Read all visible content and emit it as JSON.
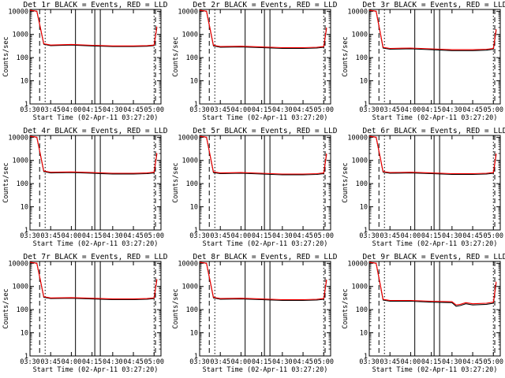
{
  "chart_data": [
    {
      "type": "line",
      "title": "Det 1r BLACK = Events, RED = LLD",
      "xlabel": "Start Time (02-Apr-11 03:27:20)",
      "ylabel": "Counts/sec",
      "x_tick_labels": [
        "03:30",
        "03:45",
        "04:00",
        "04:15",
        "04:30",
        "04:45",
        "05:00"
      ],
      "y_tick_labels": [
        "1",
        "10",
        "100",
        "1000",
        "10000"
      ],
      "y_scale": "log",
      "ylim": [
        1,
        12000
      ],
      "xlim": [
        "03:30",
        "05:05"
      ],
      "legend": "title",
      "colors": {
        "events": "#000000",
        "lld": "#ff0000"
      },
      "x": [
        "03:30",
        "03:35",
        "03:40",
        "03:45",
        "04:00",
        "04:15",
        "04:30",
        "04:45",
        "04:55",
        "05:00",
        "05:02"
      ],
      "series": [
        {
          "name": "BLACK = Events",
          "values": [
            11000,
            10000,
            380,
            330,
            350,
            320,
            300,
            300,
            310,
            330,
            2000
          ]
        },
        {
          "name": "RED = LLD",
          "values": [
            11000,
            10000,
            400,
            350,
            370,
            340,
            320,
            320,
            330,
            350,
            2200
          ]
        }
      ],
      "vlines_dashed": [
        "03:37",
        "05:01"
      ],
      "vlines_dotted": [
        "03:41",
        "05:00"
      ],
      "vlines_solid": [
        "04:03",
        "04:17",
        "04:21"
      ]
    },
    {
      "type": "line",
      "title": "Det 2r BLACK = Events, RED = LLD",
      "xlabel": "Start Time (02-Apr-11 03:27:20)",
      "ylabel": "Counts/sec",
      "x_tick_labels": [
        "03:30",
        "03:45",
        "04:00",
        "04:15",
        "04:30",
        "04:45",
        "05:00"
      ],
      "y_tick_labels": [
        "1",
        "10",
        "100",
        "1000",
        "10000"
      ],
      "y_scale": "log",
      "ylim": [
        1,
        12000
      ],
      "xlim": [
        "03:30",
        "05:05"
      ],
      "legend": "title",
      "colors": {
        "events": "#000000",
        "lld": "#ff0000"
      },
      "x": [
        "03:30",
        "03:35",
        "03:40",
        "03:45",
        "04:00",
        "04:15",
        "04:30",
        "04:45",
        "04:55",
        "05:00",
        "05:02"
      ],
      "series": [
        {
          "name": "BLACK = Events",
          "values": [
            11000,
            10000,
            320,
            280,
            290,
            270,
            250,
            250,
            260,
            280,
            1800
          ]
        },
        {
          "name": "RED = LLD",
          "values": [
            11000,
            10000,
            340,
            300,
            310,
            290,
            270,
            270,
            280,
            300,
            2000
          ]
        }
      ],
      "vlines_dashed": [
        "03:37",
        "05:01"
      ],
      "vlines_dotted": [
        "03:41",
        "05:00"
      ],
      "vlines_solid": [
        "04:03",
        "04:17",
        "04:21"
      ]
    },
    {
      "type": "line",
      "title": "Det 3r BLACK = Events, RED = LLD",
      "xlabel": "Start Time (02-Apr-11 03:27:20)",
      "ylabel": "Counts/sec",
      "x_tick_labels": [
        "03:30",
        "03:45",
        "04:00",
        "04:15",
        "04:30",
        "04:45",
        "05:00"
      ],
      "y_tick_labels": [
        "1",
        "10",
        "100",
        "1000",
        "10000"
      ],
      "y_scale": "log",
      "ylim": [
        1,
        12000
      ],
      "xlim": [
        "03:30",
        "05:05"
      ],
      "legend": "title",
      "colors": {
        "events": "#000000",
        "lld": "#ff0000"
      },
      "x": [
        "03:30",
        "03:35",
        "03:40",
        "03:45",
        "04:00",
        "04:15",
        "04:30",
        "04:45",
        "04:55",
        "05:00",
        "05:02"
      ],
      "series": [
        {
          "name": "BLACK = Events",
          "values": [
            11000,
            10000,
            260,
            230,
            240,
            220,
            200,
            200,
            210,
            230,
            1500
          ]
        },
        {
          "name": "RED = LLD",
          "values": [
            11000,
            10000,
            280,
            250,
            260,
            240,
            220,
            220,
            230,
            250,
            1700
          ]
        }
      ],
      "vlines_dashed": [
        "03:37",
        "05:01"
      ],
      "vlines_dotted": [
        "03:41",
        "05:00"
      ],
      "vlines_solid": [
        "04:03",
        "04:17",
        "04:21"
      ]
    },
    {
      "type": "line",
      "title": "Det 4r BLACK = Events, RED = LLD",
      "xlabel": "Start Time (02-Apr-11 03:27:20)",
      "ylabel": "Counts/sec",
      "x_tick_labels": [
        "03:30",
        "03:45",
        "04:00",
        "04:15",
        "04:30",
        "04:45",
        "05:00"
      ],
      "y_tick_labels": [
        "1",
        "10",
        "100",
        "1000",
        "10000"
      ],
      "y_scale": "log",
      "ylim": [
        1,
        12000
      ],
      "xlim": [
        "03:30",
        "05:05"
      ],
      "legend": "title",
      "colors": {
        "events": "#000000",
        "lld": "#ff0000"
      },
      "x": [
        "03:30",
        "03:35",
        "03:40",
        "03:45",
        "04:00",
        "04:15",
        "04:30",
        "04:45",
        "04:55",
        "05:00",
        "05:02"
      ],
      "series": [
        {
          "name": "BLACK = Events",
          "values": [
            11000,
            10000,
            330,
            290,
            300,
            280,
            260,
            260,
            270,
            290,
            1900
          ]
        },
        {
          "name": "RED = LLD",
          "values": [
            11000,
            10000,
            350,
            310,
            320,
            300,
            280,
            280,
            290,
            310,
            2100
          ]
        }
      ],
      "vlines_dashed": [
        "03:37",
        "05:01"
      ],
      "vlines_dotted": [
        "03:41",
        "05:00"
      ],
      "vlines_solid": [
        "04:03",
        "04:17",
        "04:21"
      ]
    },
    {
      "type": "line",
      "title": "Det 5r BLACK = Events, RED = LLD",
      "xlabel": "Start Time (02-Apr-11 03:27:20)",
      "ylabel": "Counts/sec",
      "x_tick_labels": [
        "03:30",
        "03:45",
        "04:00",
        "04:15",
        "04:30",
        "04:45",
        "05:00"
      ],
      "y_tick_labels": [
        "1",
        "10",
        "100",
        "1000",
        "10000"
      ],
      "y_scale": "log",
      "ylim": [
        1,
        12000
      ],
      "xlim": [
        "03:30",
        "05:05"
      ],
      "legend": "title",
      "colors": {
        "events": "#000000",
        "lld": "#ff0000"
      },
      "x": [
        "03:30",
        "03:35",
        "03:40",
        "03:45",
        "04:00",
        "04:15",
        "04:30",
        "04:45",
        "04:55",
        "05:00",
        "05:02"
      ],
      "series": [
        {
          "name": "BLACK = Events",
          "values": [
            11000,
            10000,
            300,
            270,
            280,
            260,
            240,
            240,
            250,
            270,
            1800
          ]
        },
        {
          "name": "RED = LLD",
          "values": [
            11000,
            10000,
            320,
            290,
            300,
            280,
            260,
            260,
            270,
            290,
            2000
          ]
        }
      ],
      "vlines_dashed": [
        "03:37",
        "05:01"
      ],
      "vlines_dotted": [
        "03:41",
        "05:00"
      ],
      "vlines_solid": [
        "04:03",
        "04:17",
        "04:21"
      ]
    },
    {
      "type": "line",
      "title": "Det 6r BLACK = Events, RED = LLD",
      "xlabel": "Start Time (02-Apr-11 03:27:20)",
      "ylabel": "Counts/sec",
      "x_tick_labels": [
        "03:30",
        "03:45",
        "04:00",
        "04:15",
        "04:30",
        "04:45",
        "05:00"
      ],
      "y_tick_labels": [
        "1",
        "10",
        "100",
        "1000",
        "10000"
      ],
      "y_scale": "log",
      "ylim": [
        1,
        12000
      ],
      "xlim": [
        "03:30",
        "05:05"
      ],
      "legend": "title",
      "colors": {
        "events": "#000000",
        "lld": "#ff0000"
      },
      "x": [
        "03:30",
        "03:35",
        "03:40",
        "03:45",
        "04:00",
        "04:15",
        "04:30",
        "04:45",
        "04:55",
        "05:00",
        "05:02"
      ],
      "series": [
        {
          "name": "BLACK = Events",
          "values": [
            11000,
            10000,
            310,
            280,
            290,
            270,
            250,
            250,
            260,
            280,
            1800
          ]
        },
        {
          "name": "RED = LLD",
          "values": [
            11000,
            10000,
            330,
            300,
            310,
            290,
            270,
            270,
            280,
            300,
            2000
          ]
        }
      ],
      "vlines_dashed": [
        "03:37",
        "05:01"
      ],
      "vlines_dotted": [
        "03:41",
        "05:00"
      ],
      "vlines_solid": [
        "04:03",
        "04:17",
        "04:21"
      ]
    },
    {
      "type": "line",
      "title": "Det 7r BLACK = Events, RED = LLD",
      "xlabel": "Start Time (02-Apr-11 03:27:20)",
      "ylabel": "Counts/sec",
      "x_tick_labels": [
        "03:30",
        "03:45",
        "04:00",
        "04:15",
        "04:30",
        "04:45",
        "05:00"
      ],
      "y_tick_labels": [
        "1",
        "10",
        "100",
        "1000",
        "10000"
      ],
      "y_scale": "log",
      "ylim": [
        1,
        12000
      ],
      "xlim": [
        "03:30",
        "05:05"
      ],
      "legend": "title",
      "colors": {
        "events": "#000000",
        "lld": "#ff0000"
      },
      "x": [
        "03:30",
        "03:35",
        "03:40",
        "03:45",
        "04:00",
        "04:15",
        "04:30",
        "04:45",
        "04:55",
        "05:00",
        "05:02"
      ],
      "series": [
        {
          "name": "BLACK = Events",
          "values": [
            11000,
            10000,
            340,
            300,
            310,
            290,
            270,
            270,
            280,
            300,
            1900
          ]
        },
        {
          "name": "RED = LLD",
          "values": [
            11000,
            10000,
            360,
            320,
            330,
            310,
            290,
            290,
            300,
            320,
            2100
          ]
        }
      ],
      "vlines_dashed": [
        "03:37",
        "05:01"
      ],
      "vlines_dotted": [
        "03:41",
        "05:00"
      ],
      "vlines_solid": [
        "04:03",
        "04:17",
        "04:21"
      ]
    },
    {
      "type": "line",
      "title": "Det 8r BLACK = Events, RED = LLD",
      "xlabel": "Start Time (02-Apr-11 03:27:20)",
      "ylabel": "Counts/sec",
      "x_tick_labels": [
        "03:30",
        "03:45",
        "04:00",
        "04:15",
        "04:30",
        "04:45",
        "05:00"
      ],
      "y_tick_labels": [
        "1",
        "10",
        "100",
        "1000",
        "10000"
      ],
      "y_scale": "log",
      "ylim": [
        1,
        12000
      ],
      "xlim": [
        "03:30",
        "05:05"
      ],
      "legend": "title",
      "colors": {
        "events": "#000000",
        "lld": "#ff0000"
      },
      "x": [
        "03:30",
        "03:35",
        "03:40",
        "03:45",
        "04:00",
        "04:15",
        "04:30",
        "04:45",
        "04:55",
        "05:00",
        "05:02"
      ],
      "series": [
        {
          "name": "BLACK = Events",
          "values": [
            11000,
            10000,
            320,
            280,
            290,
            270,
            250,
            250,
            260,
            280,
            1800
          ]
        },
        {
          "name": "RED = LLD",
          "values": [
            11000,
            10000,
            340,
            300,
            310,
            290,
            270,
            270,
            280,
            300,
            2000
          ]
        }
      ],
      "vlines_dashed": [
        "03:37",
        "05:01"
      ],
      "vlines_dotted": [
        "03:41",
        "05:00"
      ],
      "vlines_solid": [
        "04:03",
        "04:17",
        "04:21"
      ]
    },
    {
      "type": "line",
      "title": "Det 9r BLACK = Events, RED = LLD",
      "xlabel": "Start Time (02-Apr-11 03:27:20)",
      "ylabel": "Counts/sec",
      "x_tick_labels": [
        "03:30",
        "03:45",
        "04:00",
        "04:15",
        "04:30",
        "04:45",
        "05:00"
      ],
      "y_tick_labels": [
        "1",
        "10",
        "100",
        "1000",
        "10000"
      ],
      "y_scale": "log",
      "ylim": [
        1,
        12000
      ],
      "xlim": [
        "03:30",
        "05:05"
      ],
      "legend": "title",
      "colors": {
        "events": "#000000",
        "lld": "#ff0000"
      },
      "x": [
        "03:30",
        "03:35",
        "03:40",
        "03:45",
        "04:00",
        "04:15",
        "04:30",
        "04:33",
        "04:36",
        "04:40",
        "04:45",
        "04:55",
        "05:00",
        "05:02"
      ],
      "series": [
        {
          "name": "BLACK = Events",
          "values": [
            11000,
            10000,
            260,
            230,
            230,
            210,
            200,
            140,
            150,
            180,
            160,
            170,
            190,
            1400
          ]
        },
        {
          "name": "RED = LLD",
          "values": [
            11000,
            10000,
            280,
            250,
            250,
            230,
            220,
            160,
            170,
            200,
            180,
            190,
            210,
            1600
          ]
        }
      ],
      "vlines_dashed": [
        "03:37",
        "05:01"
      ],
      "vlines_dotted": [
        "03:41",
        "05:00"
      ],
      "vlines_solid": [
        "04:03",
        "04:17",
        "04:21"
      ]
    }
  ]
}
